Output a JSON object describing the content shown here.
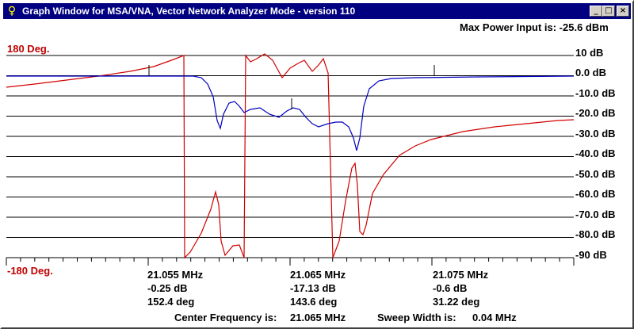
{
  "window": {
    "title": "Graph Window for MSA/VNA, Vector Network Analyzer Mode - version 110",
    "buttons": {
      "minimize": "_",
      "maximize": "□",
      "close": "×"
    }
  },
  "header": {
    "max_power": "Max Power Input is:  -25.6 dBm"
  },
  "phase_axis": {
    "top": "180 Deg.",
    "bottom": "-180 Deg."
  },
  "mag_axis": {
    "labels": [
      "10 dB",
      "0.0 dB",
      "-10.0 dB",
      "-20.0 dB",
      "-30.0 dB",
      "-40.0 dB",
      "-50.0 dB",
      "-60.0 dB",
      "-70.0 dB",
      "-80.0 dB",
      "-90 dB"
    ]
  },
  "markers": [
    {
      "freq": "21.055 MHz",
      "mag": "-0.25 dB",
      "phase": "152.4 deg"
    },
    {
      "freq": "21.065 MHz",
      "mag": "-17.13 dB",
      "phase": "143.6 deg"
    },
    {
      "freq": "21.075 MHz",
      "mag": "-0.6 dB",
      "phase": "31.22 deg"
    }
  ],
  "footer": {
    "center_label": "Center Frequency is:",
    "center_value": "21.065 MHz",
    "width_label": "Sweep Width is:",
    "width_value": "0.04 MHz"
  },
  "colors": {
    "magnitude": "#0000c0",
    "phase": "#d00000",
    "grid": "#000000",
    "title_bar": "#000080"
  }
}
